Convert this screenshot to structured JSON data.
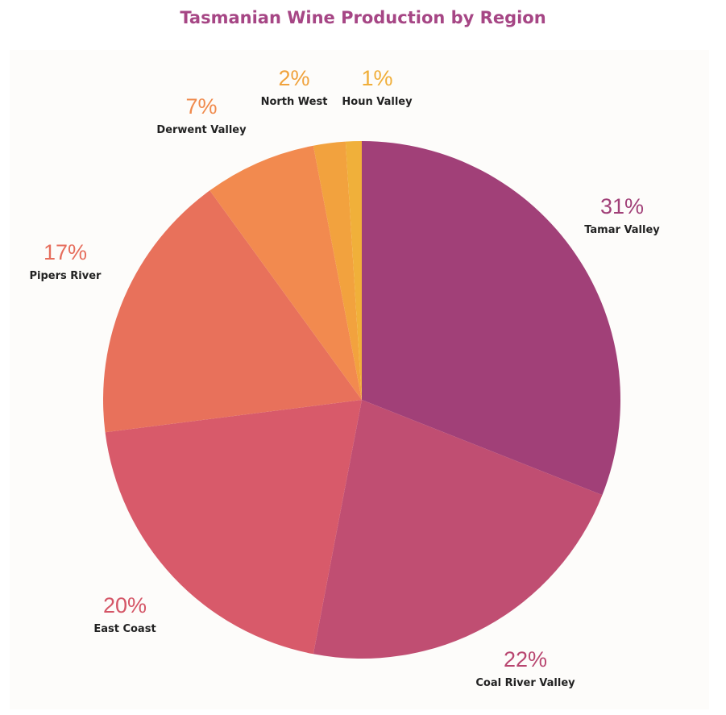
{
  "chart_data": {
    "type": "pie",
    "title": "Tasmanian Wine Production by Region",
    "slices": [
      {
        "label": "Tamar Valley",
        "value": 31,
        "display": "31%",
        "color": "#a14078"
      },
      {
        "label": "Coal River Valley",
        "value": 22,
        "display": "22%",
        "color": "#c04e72"
      },
      {
        "label": "East Coast",
        "value": 20,
        "display": "20%",
        "color": "#d85a6a"
      },
      {
        "label": "Pipers River",
        "value": 17,
        "display": "17%",
        "color": "#e8715b"
      },
      {
        "label": "Derwent Valley",
        "value": 7,
        "display": "7%",
        "color": "#f28a4f"
      },
      {
        "label": "North West",
        "value": 2,
        "display": "2%",
        "color": "#f2a23e"
      },
      {
        "label": "Houn Valley",
        "value": 1,
        "display": "1%",
        "color": "#f0b03a"
      }
    ],
    "start": "top",
    "direction": "clockwise"
  }
}
